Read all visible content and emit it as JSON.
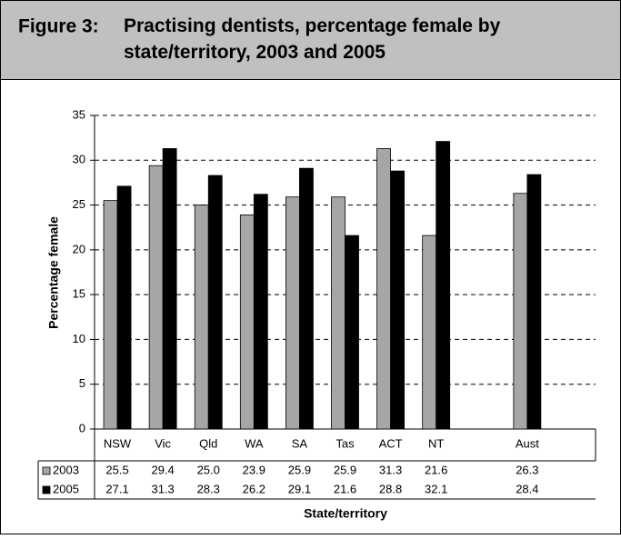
{
  "chart_data": {
    "type": "bar",
    "figure_label": "Figure 3:",
    "title": "Practising dentists, percentage female by state/territory, 2003 and 2005",
    "y_label": "Percentage female",
    "x_label": "State/territory",
    "categories": [
      "NSW",
      "Vic",
      "Qld",
      "WA",
      "SA",
      "Tas",
      "ACT",
      "NT",
      null,
      "Aust"
    ],
    "series": [
      {
        "name": "2003",
        "color": "#a6a6a6",
        "values": [
          25.5,
          29.4,
          25.0,
          23.9,
          25.9,
          25.9,
          31.3,
          21.6,
          null,
          26.3
        ],
        "value_labels": [
          "25.5",
          "29.4",
          "25.0",
          "23.9",
          "25.9",
          "25.9",
          "31.3",
          "21.6",
          null,
          "26.3"
        ]
      },
      {
        "name": "2005",
        "color": "#000000",
        "values": [
          27.1,
          31.3,
          28.3,
          26.2,
          29.1,
          21.6,
          28.8,
          32.1,
          null,
          28.4
        ],
        "value_labels": [
          "27.1",
          "31.3",
          "28.3",
          "26.2",
          "29.1",
          "21.6",
          "28.8",
          "32.1",
          null,
          "28.4"
        ]
      }
    ],
    "ylim": [
      0,
      35
    ],
    "yticks": [
      0,
      5,
      10,
      15,
      20,
      25,
      30,
      35
    ],
    "grid": true
  }
}
